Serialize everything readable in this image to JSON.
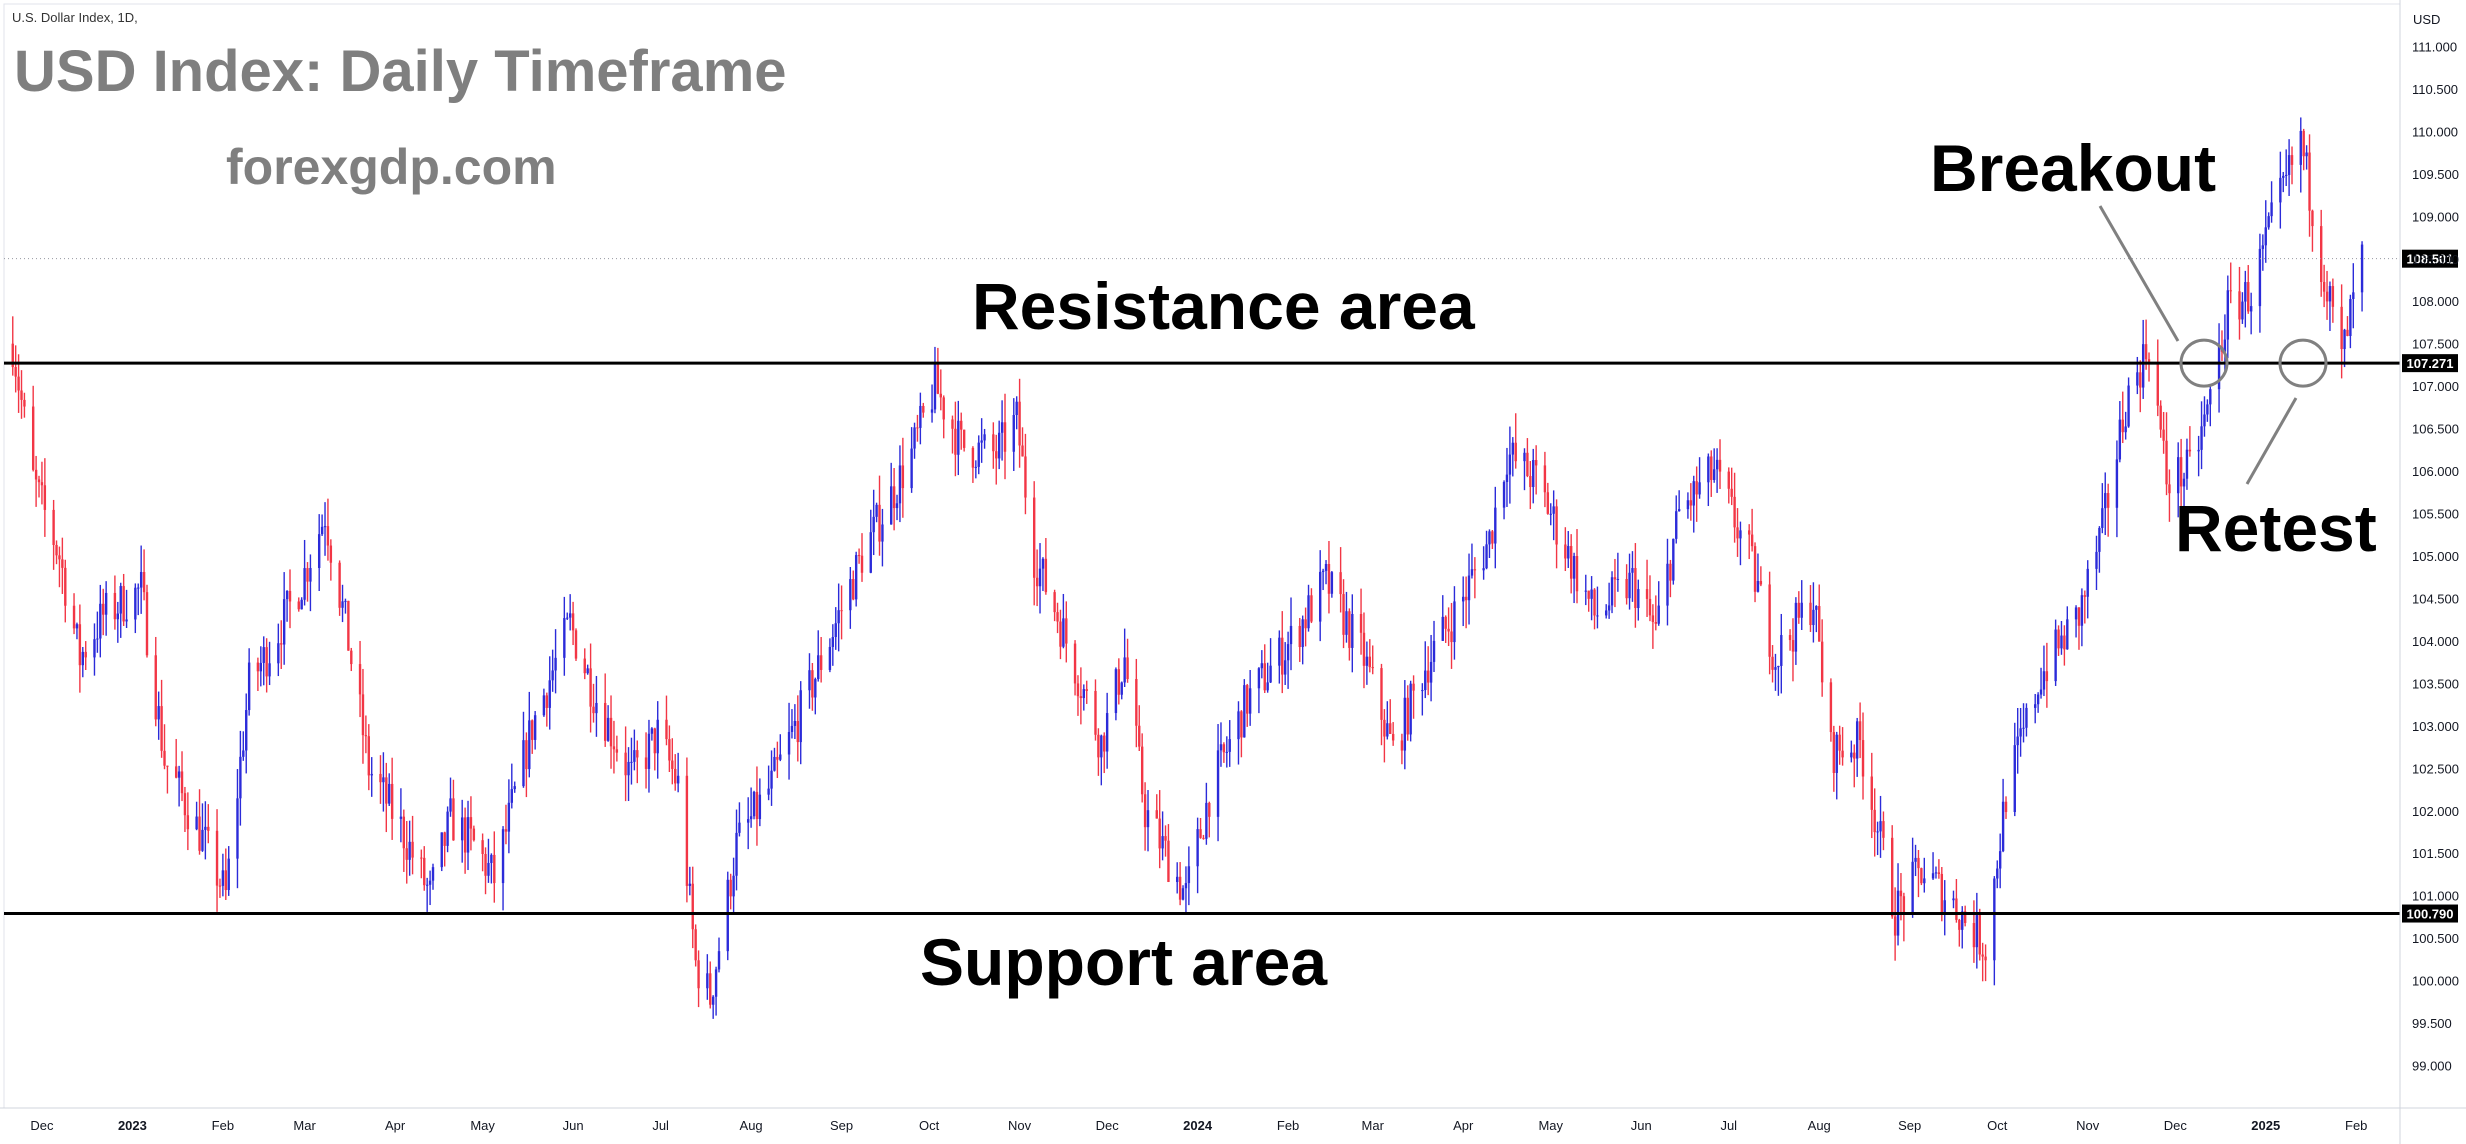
{
  "header": {
    "symbol_label": "U.S. Dollar Index, 1D,",
    "title": "USD Index: Daily Timeframe",
    "website": "forexgdp.com"
  },
  "annotations": {
    "resistance": "Resistance area",
    "support": "Support area",
    "breakout": "Breakout",
    "retest": "Retest"
  },
  "colors": {
    "up": "#2b2bd9",
    "down": "#f23645",
    "level_line": "#000000",
    "current_badge": "#000000",
    "circle": "#808080",
    "grid": "#f0f0f5"
  },
  "chart_data": {
    "type": "candlestick",
    "title": "USD Index: Daily Timeframe",
    "currency": "USD",
    "ylim": [
      98.5,
      111.5
    ],
    "y_ticks": [
      "111.000",
      "110.500",
      "110.000",
      "109.500",
      "109.000",
      "108.500",
      "108.000",
      "107.500",
      "107.000",
      "106.500",
      "106.000",
      "105.500",
      "105.000",
      "104.500",
      "104.000",
      "103.500",
      "103.000",
      "102.500",
      "102.000",
      "101.500",
      "101.000",
      "100.500",
      "100.000",
      "99.500",
      "99.000"
    ],
    "x_ticks": [
      {
        "label": "Dec",
        "date": "2022-12-01",
        "bold": false
      },
      {
        "label": "2023",
        "date": "2023-01-01",
        "bold": true
      },
      {
        "label": "Feb",
        "date": "2023-02-01",
        "bold": false
      },
      {
        "label": "Mar",
        "date": "2023-03-01",
        "bold": false
      },
      {
        "label": "Apr",
        "date": "2023-04-01",
        "bold": false
      },
      {
        "label": "May",
        "date": "2023-05-01",
        "bold": false
      },
      {
        "label": "Jun",
        "date": "2023-06-01",
        "bold": false
      },
      {
        "label": "Jul",
        "date": "2023-07-01",
        "bold": false
      },
      {
        "label": "Aug",
        "date": "2023-08-01",
        "bold": false
      },
      {
        "label": "Sep",
        "date": "2023-09-01",
        "bold": false
      },
      {
        "label": "Oct",
        "date": "2023-10-01",
        "bold": false
      },
      {
        "label": "Nov",
        "date": "2023-11-01",
        "bold": false
      },
      {
        "label": "Dec",
        "date": "2023-12-01",
        "bold": false
      },
      {
        "label": "2024",
        "date": "2024-01-01",
        "bold": true
      },
      {
        "label": "Feb",
        "date": "2024-02-01",
        "bold": false
      },
      {
        "label": "Mar",
        "date": "2024-03-01",
        "bold": false
      },
      {
        "label": "Apr",
        "date": "2024-04-01",
        "bold": false
      },
      {
        "label": "May",
        "date": "2024-05-01",
        "bold": false
      },
      {
        "label": "Jun",
        "date": "2024-06-01",
        "bold": false
      },
      {
        "label": "Jul",
        "date": "2024-07-01",
        "bold": false
      },
      {
        "label": "Aug",
        "date": "2024-08-01",
        "bold": false
      },
      {
        "label": "Sep",
        "date": "2024-09-01",
        "bold": false
      },
      {
        "label": "Oct",
        "date": "2024-10-01",
        "bold": false
      },
      {
        "label": "Nov",
        "date": "2024-11-01",
        "bold": false
      },
      {
        "label": "Dec",
        "date": "2024-12-01",
        "bold": false
      },
      {
        "label": "2025",
        "date": "2025-01-01",
        "bold": true
      },
      {
        "label": "Feb",
        "date": "2025-02-01",
        "bold": false
      }
    ],
    "x_range": [
      "2022-11-18",
      "2025-02-16"
    ],
    "levels": [
      {
        "name": "Resistance area",
        "value": 107.271,
        "label": "107.271"
      },
      {
        "name": "Support area",
        "value": 100.79,
        "label": "100.790"
      }
    ],
    "current_price": {
      "value": 108.501,
      "label": "108.501"
    },
    "price_path": [
      [
        "2022-11-21",
        107.5
      ],
      [
        "2022-11-28",
        105.9
      ],
      [
        "2022-12-07",
        105.0
      ],
      [
        "2022-12-14",
        103.8
      ],
      [
        "2022-12-22",
        104.3
      ],
      [
        "2023-01-04",
        104.6
      ],
      [
        "2023-01-12",
        102.6
      ],
      [
        "2023-01-26",
        101.6
      ],
      [
        "2023-02-02",
        101.0
      ],
      [
        "2023-02-10",
        103.5
      ],
      [
        "2023-02-17",
        103.9
      ],
      [
        "2023-02-28",
        104.7
      ],
      [
        "2023-03-08",
        105.5
      ],
      [
        "2023-03-15",
        104.2
      ],
      [
        "2023-03-23",
        102.5
      ],
      [
        "2023-04-03",
        101.8
      ],
      [
        "2023-04-13",
        101.0
      ],
      [
        "2023-04-20",
        101.9
      ],
      [
        "2023-04-28",
        101.6
      ],
      [
        "2023-05-05",
        101.2
      ],
      [
        "2023-05-18",
        103.0
      ],
      [
        "2023-05-31",
        104.2
      ],
      [
        "2023-06-08",
        103.4
      ],
      [
        "2023-06-21",
        102.4
      ],
      [
        "2023-06-30",
        102.9
      ],
      [
        "2023-07-07",
        102.3
      ],
      [
        "2023-07-13",
        100.2
      ],
      [
        "2023-07-18",
        99.8
      ],
      [
        "2023-07-27",
        101.6
      ],
      [
        "2023-08-08",
        102.3
      ],
      [
        "2023-08-22",
        103.5
      ],
      [
        "2023-09-08",
        105.0
      ],
      [
        "2023-09-25",
        106.2
      ],
      [
        "2023-10-03",
        107.0
      ],
      [
        "2023-10-12",
        106.3
      ],
      [
        "2023-10-24",
        106.2
      ],
      [
        "2023-10-31",
        106.6
      ],
      [
        "2023-11-06",
        105.0
      ],
      [
        "2023-11-14",
        104.3
      ],
      [
        "2023-11-29",
        102.8
      ],
      [
        "2023-12-07",
        103.8
      ],
      [
        "2023-12-14",
        102.0
      ],
      [
        "2023-12-28",
        101.0
      ],
      [
        "2024-01-05",
        102.2
      ],
      [
        "2024-01-18",
        103.3
      ],
      [
        "2024-02-02",
        104.0
      ],
      [
        "2024-02-14",
        104.7
      ],
      [
        "2024-02-27",
        103.8
      ],
      [
        "2024-03-08",
        102.7
      ],
      [
        "2024-03-19",
        103.7
      ],
      [
        "2024-04-01",
        104.5
      ],
      [
        "2024-04-10",
        105.2
      ],
      [
        "2024-04-16",
        106.2
      ],
      [
        "2024-04-26",
        105.9
      ],
      [
        "2024-05-06",
        105.1
      ],
      [
        "2024-05-16",
        104.3
      ],
      [
        "2024-05-29",
        104.7
      ],
      [
        "2024-06-06",
        104.1
      ],
      [
        "2024-06-14",
        105.5
      ],
      [
        "2024-06-26",
        106.0
      ],
      [
        "2024-07-08",
        105.0
      ],
      [
        "2024-07-17",
        103.8
      ],
      [
        "2024-07-30",
        104.5
      ],
      [
        "2024-08-05",
        102.7
      ],
      [
        "2024-08-15",
        102.8
      ],
      [
        "2024-08-27",
        100.8
      ],
      [
        "2024-09-05",
        101.3
      ],
      [
        "2024-09-16",
        100.9
      ],
      [
        "2024-09-27",
        100.4
      ],
      [
        "2024-10-04",
        102.2
      ],
      [
        "2024-10-16",
        103.6
      ],
      [
        "2024-10-29",
        104.3
      ],
      [
        "2024-11-06",
        105.3
      ],
      [
        "2024-11-14",
        106.8
      ],
      [
        "2024-11-22",
        107.5
      ],
      [
        "2024-11-28",
        105.9
      ],
      [
        "2024-12-06",
        106.0
      ],
      [
        "2024-12-12",
        106.7
      ],
      [
        "2024-12-19",
        107.9
      ],
      [
        "2024-12-27",
        108.1
      ],
      [
        "2025-01-03",
        108.9
      ],
      [
        "2025-01-13",
        109.9
      ],
      [
        "2025-01-20",
        108.5
      ],
      [
        "2025-01-27",
        107.3
      ],
      [
        "2025-02-03",
        108.5
      ]
    ]
  }
}
